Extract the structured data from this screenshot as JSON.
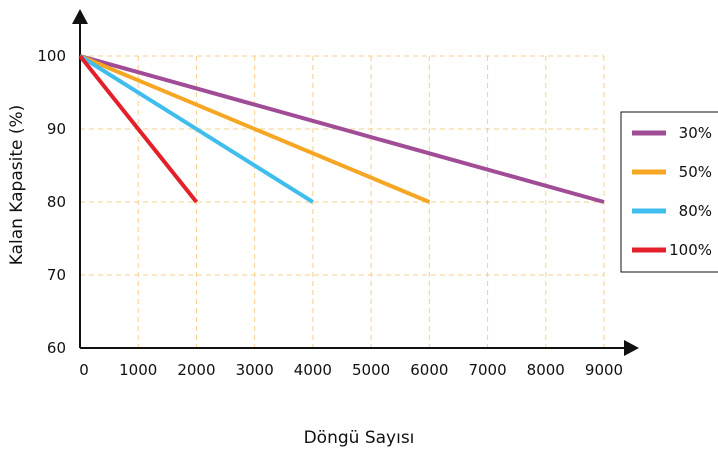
{
  "chart_data": {
    "type": "line",
    "xlabel": "Döngü Sayısı",
    "ylabel": "Kalan Kapasite (%)",
    "xlim": [
      0,
      9000
    ],
    "ylim": [
      60,
      100
    ],
    "xticks": [
      "0",
      "1000",
      "2000",
      "3000",
      "4000",
      "5000",
      "6000",
      "7000",
      "8000",
      "9000"
    ],
    "yticks": [
      "60",
      "70",
      "80",
      "90",
      "100"
    ],
    "grid": true,
    "legend_position": "right",
    "series": [
      {
        "name": "30%",
        "color": "#a14c96",
        "x": [
          0,
          9000
        ],
        "y": [
          100,
          80
        ]
      },
      {
        "name": "50%",
        "color": "#f5a623",
        "x": [
          0,
          6000
        ],
        "y": [
          100,
          80
        ]
      },
      {
        "name": "80%",
        "color": "#3fbdec",
        "x": [
          0,
          4000
        ],
        "y": [
          100,
          80
        ]
      },
      {
        "name": "100%",
        "color": "#e3202a",
        "x": [
          0,
          2000
        ],
        "y": [
          100,
          80
        ]
      }
    ]
  }
}
